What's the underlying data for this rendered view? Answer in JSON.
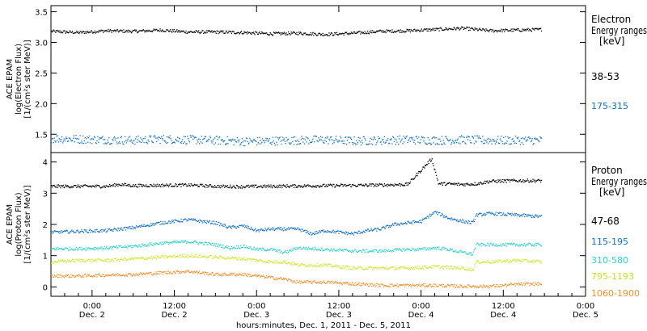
{
  "xaxis": {
    "label": "hours:minutes, Dec.  1, 2011 - Dec.  5, 2011",
    "ticks": [
      {
        "t": 6,
        "time": "0:00",
        "date": "Dec. 2"
      },
      {
        "t": 18,
        "time": "12:00",
        "date": "Dec. 2"
      },
      {
        "t": 30,
        "time": "0:00",
        "date": "Dec. 3"
      },
      {
        "t": 42,
        "time": "12:00",
        "date": "Dec. 3"
      },
      {
        "t": 54,
        "time": "0:00",
        "date": "Dec. 4"
      },
      {
        "t": 66,
        "time": "12:00",
        "date": "Dec. 4"
      },
      {
        "t": 78,
        "time": "0:00",
        "date": "Dec. 5"
      }
    ]
  },
  "chart_data": [
    {
      "type": "scatter",
      "ylabel_lines": [
        "ACE EPAM",
        "log(Electron Flux)",
        "[1/(cm²s ster MeV)]"
      ],
      "ylim": [
        1.2,
        3.6
      ],
      "yticks": [
        "1.5",
        "2.0",
        "2.5",
        "3.0",
        "3.5"
      ],
      "xlim": [
        0,
        78
      ],
      "legend_title": [
        "Electron",
        "Energy ranges",
        "[keV]"
      ],
      "series": [
        {
          "name": "38-53",
          "color": "#000000",
          "x": [
            0,
            4,
            8,
            12,
            16,
            20,
            24,
            28,
            32,
            36,
            40,
            44,
            48,
            52,
            56,
            60,
            64,
            68,
            71.5
          ],
          "values": [
            3.18,
            3.16,
            3.19,
            3.18,
            3.2,
            3.17,
            3.17,
            3.16,
            3.14,
            3.15,
            3.13,
            3.15,
            3.18,
            3.19,
            3.21,
            3.23,
            3.19,
            3.2,
            3.21
          ]
        },
        {
          "name": "175-315",
          "color": "#0f6fc6",
          "x": [
            0,
            4,
            8,
            12,
            16,
            20,
            24,
            28,
            32,
            36,
            40,
            44,
            48,
            52,
            56,
            60,
            64,
            68,
            71.5
          ],
          "values": [
            1.43,
            1.42,
            1.41,
            1.4,
            1.42,
            1.41,
            1.4,
            1.38,
            1.39,
            1.4,
            1.41,
            1.39,
            1.4,
            1.41,
            1.4,
            1.41,
            1.4,
            1.4,
            1.4
          ]
        }
      ]
    },
    {
      "type": "scatter",
      "ylabel_lines": [
        "ACE EPAM",
        "log(Proton Flux)",
        "[1/(cm²s ster MeV)]"
      ],
      "ylim": [
        -0.3,
        4.3
      ],
      "yticks": [
        "0",
        "1",
        "2",
        "3",
        "4"
      ],
      "xlim": [
        0,
        78
      ],
      "legend_title": [
        "Proton",
        "Energy ranges",
        "[keV]"
      ],
      "series": [
        {
          "name": "47-68",
          "color": "#000000",
          "x": [
            0,
            4,
            8,
            10,
            12,
            16,
            20,
            24,
            28,
            32,
            36,
            40,
            44,
            48,
            52,
            55.5,
            56.5,
            57.5,
            60,
            62,
            64,
            68,
            71.5
          ],
          "values": [
            3.22,
            3.22,
            3.22,
            3.28,
            3.24,
            3.25,
            3.26,
            3.22,
            3.21,
            3.22,
            3.23,
            3.24,
            3.25,
            3.26,
            3.28,
            4.1,
            3.3,
            3.3,
            3.28,
            3.3,
            3.38,
            3.4,
            3.4
          ]
        },
        {
          "name": "115-195",
          "color": "#0f6fc6",
          "x": [
            0,
            4,
            8,
            12,
            16,
            18,
            20,
            22,
            24,
            26,
            28,
            30,
            32,
            34,
            36,
            38,
            40,
            42,
            44,
            46,
            48,
            50,
            52,
            54,
            56,
            58,
            60,
            61.5,
            62,
            64,
            68,
            71.5
          ],
          "values": [
            1.75,
            1.78,
            1.8,
            1.9,
            2.05,
            2.1,
            2.15,
            2.1,
            2.05,
            1.9,
            1.95,
            1.8,
            1.85,
            1.85,
            1.85,
            1.7,
            1.8,
            1.75,
            1.7,
            1.8,
            1.85,
            2.0,
            2.05,
            2.1,
            2.4,
            2.2,
            2.1,
            2.05,
            2.3,
            2.35,
            2.3,
            2.25
          ]
        },
        {
          "name": "310-580",
          "color": "#28d4c8",
          "x": [
            0,
            4,
            8,
            12,
            16,
            20,
            24,
            26,
            28,
            30,
            32,
            34,
            36,
            40,
            44,
            48,
            52,
            54,
            56,
            58,
            60,
            61.5,
            62,
            64,
            68,
            71.5
          ],
          "values": [
            1.22,
            1.22,
            1.25,
            1.3,
            1.4,
            1.45,
            1.35,
            1.25,
            1.3,
            1.2,
            1.2,
            1.1,
            1.25,
            1.2,
            1.15,
            1.15,
            1.2,
            1.2,
            1.25,
            1.2,
            1.1,
            1.05,
            1.35,
            1.35,
            1.35,
            1.35
          ]
        },
        {
          "name": "795-1193",
          "color": "#cfe82a",
          "x": [
            0,
            4,
            8,
            12,
            16,
            20,
            24,
            28,
            30,
            32,
            34,
            36,
            40,
            44,
            48,
            52,
            56,
            60,
            61.5,
            62,
            64,
            68,
            71.5
          ],
          "values": [
            0.8,
            0.85,
            0.85,
            0.9,
            0.95,
            1.0,
            0.95,
            0.9,
            0.85,
            0.8,
            0.8,
            0.7,
            0.7,
            0.6,
            0.6,
            0.6,
            0.65,
            0.6,
            0.55,
            0.8,
            0.8,
            0.85,
            0.8
          ]
        },
        {
          "name": "1060-1900",
          "color": "#f0902a",
          "x": [
            0,
            4,
            8,
            12,
            16,
            20,
            24,
            28,
            30,
            32,
            34,
            36,
            40,
            44,
            48,
            52,
            56,
            60,
            64,
            68,
            71.5
          ],
          "values": [
            0.35,
            0.35,
            0.38,
            0.4,
            0.45,
            0.5,
            0.4,
            0.4,
            0.35,
            0.3,
            0.25,
            0.15,
            0.15,
            0.1,
            0.05,
            0.05,
            0.05,
            0.02,
            0.02,
            0.08,
            0.1
          ]
        }
      ]
    }
  ]
}
